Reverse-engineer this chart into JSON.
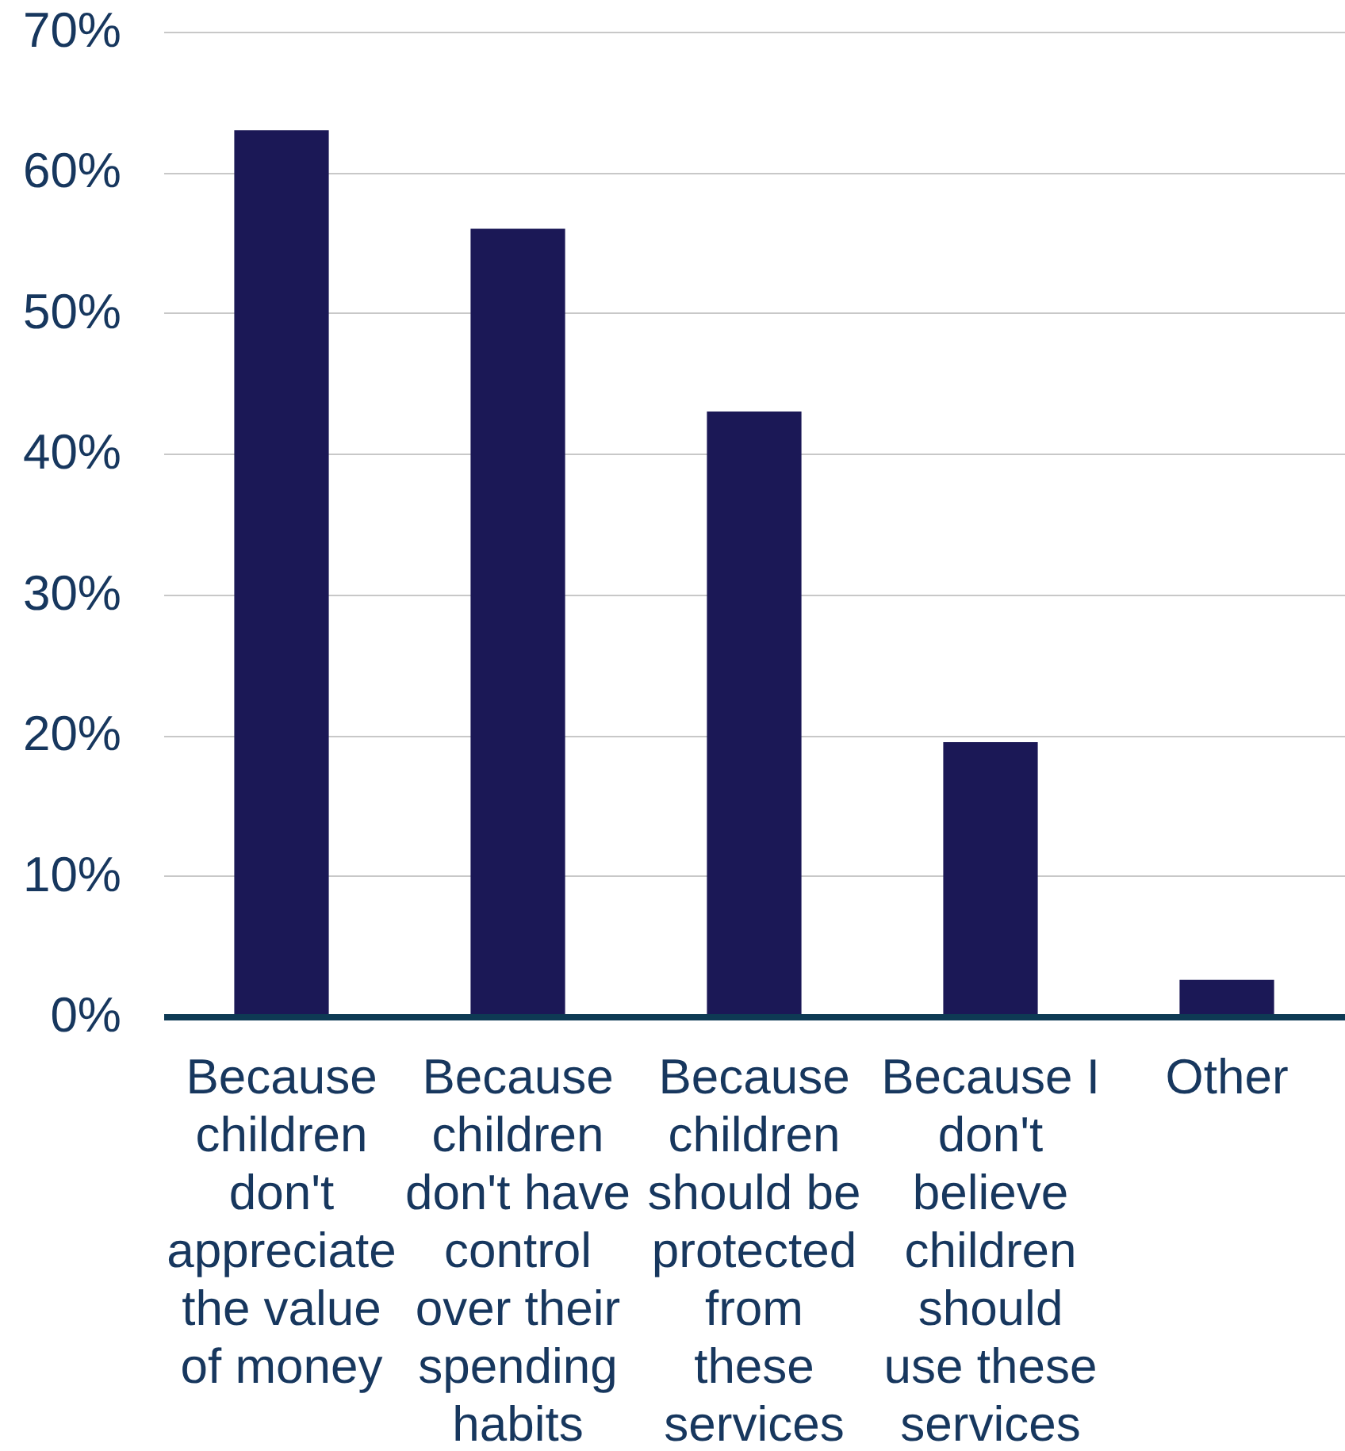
{
  "chart_data": {
    "type": "bar",
    "categories": [
      "Because children don't appreciate the value of money",
      "Because children don't have control over their spending habits",
      "Because children should be protected from these services",
      "Because I don't believe children should use these services",
      "Other"
    ],
    "values": [
      63,
      56,
      43,
      19.5,
      2.6
    ],
    "color": "#1b1856",
    "ylim": [
      0,
      70
    ],
    "yticks": [
      {
        "value": 0,
        "label": "0%"
      },
      {
        "value": 10,
        "label": "10%"
      },
      {
        "value": 20,
        "label": "20%"
      },
      {
        "value": 30,
        "label": "30%"
      },
      {
        "value": 40,
        "label": "40%"
      },
      {
        "value": 50,
        "label": "50%"
      },
      {
        "value": 60,
        "label": "60%"
      },
      {
        "value": 70,
        "label": "70%"
      }
    ],
    "grid": "y"
  }
}
